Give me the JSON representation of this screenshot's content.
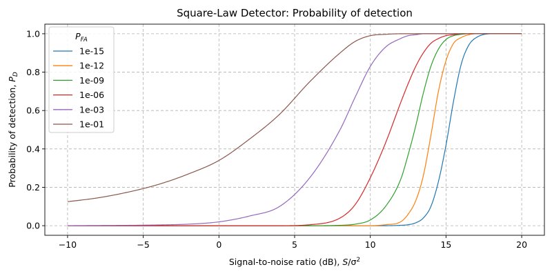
{
  "chart_data": {
    "type": "line",
    "title": "Square-Law Detector: Probability of detection",
    "xlabel": "Signal-to-noise ratio (dB), S/σ²",
    "xlabel_main": "Signal-to-noise ratio (dB), ",
    "xlabel_sym": "S",
    "xlabel_rest": "/σ",
    "xlabel_sup": "2",
    "ylabel": "Probability of detection, P_D",
    "ylabel_main": "Probability of detection, ",
    "ylabel_sym": "P",
    "ylabel_sub": "D",
    "xlim": [
      -11.5,
      21.5
    ],
    "ylim": [
      -0.05,
      1.05
    ],
    "xticks": [
      -10,
      -5,
      0,
      5,
      10,
      15,
      20
    ],
    "xtick_labels": [
      "−10",
      "−5",
      "0",
      "5",
      "10",
      "15",
      "20"
    ],
    "yticks": [
      0.0,
      0.2,
      0.4,
      0.6,
      0.8,
      1.0
    ],
    "ytick_labels": [
      "0.0",
      "0.2",
      "0.4",
      "0.6",
      "0.8",
      "1.0"
    ],
    "grid": true,
    "legend_title": "P_FA",
    "legend_title_sym": "P",
    "legend_title_sub": "FA",
    "legend_position": "upper-left",
    "x": [
      -10,
      -8,
      -6,
      -4,
      -2,
      0,
      2,
      4,
      6,
      8,
      9,
      10,
      11,
      12,
      12.5,
      13,
      13.5,
      14,
      14.5,
      15,
      15.5,
      16,
      16.5,
      17,
      18,
      19,
      20
    ],
    "series": [
      {
        "name": "1e-15",
        "color": "#1f77b4",
        "values": [
          0,
          0,
          0,
          0,
          0,
          0,
          0,
          0,
          0,
          0,
          0,
          0,
          0,
          0.002,
          0.005,
          0.015,
          0.04,
          0.1,
          0.23,
          0.42,
          0.65,
          0.84,
          0.94,
          0.98,
          1.0,
          1.0,
          1.0
        ]
      },
      {
        "name": "1e-12",
        "color": "#ff7f0e",
        "values": [
          0,
          0,
          0,
          0,
          0,
          0,
          0,
          0,
          0,
          0,
          0,
          0,
          0.005,
          0.02,
          0.06,
          0.13,
          0.26,
          0.47,
          0.7,
          0.86,
          0.95,
          0.98,
          0.995,
          1.0,
          1.0,
          1.0,
          1.0
        ]
      },
      {
        "name": "1e-09",
        "color": "#2ca02c",
        "values": [
          0,
          0,
          0,
          0,
          0,
          0,
          0,
          0,
          0,
          0.002,
          0.008,
          0.03,
          0.1,
          0.24,
          0.37,
          0.52,
          0.69,
          0.83,
          0.92,
          0.97,
          0.99,
          0.997,
          1.0,
          1.0,
          1.0,
          1.0,
          1.0
        ]
      },
      {
        "name": "1e-06",
        "color": "#d62728",
        "values": [
          0,
          0,
          0,
          0,
          0,
          0,
          0,
          0,
          0.005,
          0.04,
          0.11,
          0.25,
          0.43,
          0.64,
          0.74,
          0.83,
          0.9,
          0.95,
          0.975,
          0.99,
          0.995,
          1.0,
          1.0,
          1.0,
          1.0,
          1.0,
          1.0
        ]
      },
      {
        "name": "1e-03",
        "color": "#9467bd",
        "values": [
          0,
          0.001,
          0.002,
          0.004,
          0.008,
          0.02,
          0.05,
          0.1,
          0.25,
          0.5,
          0.67,
          0.83,
          0.93,
          0.975,
          0.99,
          0.995,
          1.0,
          1.0,
          1.0,
          1.0,
          1.0,
          1.0,
          1.0,
          1.0,
          1.0,
          1.0,
          1.0
        ]
      },
      {
        "name": "1e-01",
        "color": "#8c564b",
        "values": [
          0.125,
          0.145,
          0.175,
          0.215,
          0.27,
          0.34,
          0.45,
          0.58,
          0.75,
          0.9,
          0.96,
          0.99,
          0.997,
          1.0,
          1.0,
          1.0,
          1.0,
          1.0,
          1.0,
          1.0,
          1.0,
          1.0,
          1.0,
          1.0,
          1.0,
          1.0,
          1.0
        ]
      }
    ]
  }
}
